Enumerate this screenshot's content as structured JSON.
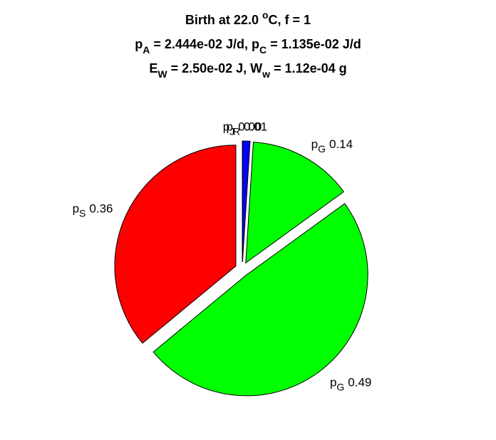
{
  "chart_data": {
    "type": "pie",
    "title": [
      [
        {
          "text": "Birth at 22.0 "
        },
        {
          "sup": "o"
        },
        {
          "text": "C, f = 1"
        }
      ],
      [
        {
          "text": "p"
        },
        {
          "sub": "A"
        },
        {
          "text": " = 2.444e-02 J/d, p"
        },
        {
          "sub": "C"
        },
        {
          "text": " = 1.135e-02 J/d"
        }
      ],
      [
        {
          "text": "E"
        },
        {
          "sub": "W"
        },
        {
          "text": " = 2.50e-02 J, W"
        },
        {
          "sub": "w"
        },
        {
          "text": " = 1.12e-04 g"
        }
      ]
    ],
    "categories": [
      {
        "main": "p",
        "sub": "S"
      },
      {
        "main": "p",
        "sub": "G"
      },
      {
        "main": "p",
        "sub": "G"
      },
      {
        "main": "p",
        "sub": "R"
      },
      {
        "main": "p",
        "sub": "J"
      }
    ],
    "values": [
      0.36,
      0.49,
      0.14,
      0.01,
      0.0
    ],
    "value_labels": [
      "0.36",
      "0.49",
      "0.14",
      "0.01",
      "0.00"
    ],
    "colors": [
      "#ff0000",
      "#00ff00",
      "#00ff00",
      "#0000ff",
      "#00ffff"
    ],
    "explode": true
  }
}
